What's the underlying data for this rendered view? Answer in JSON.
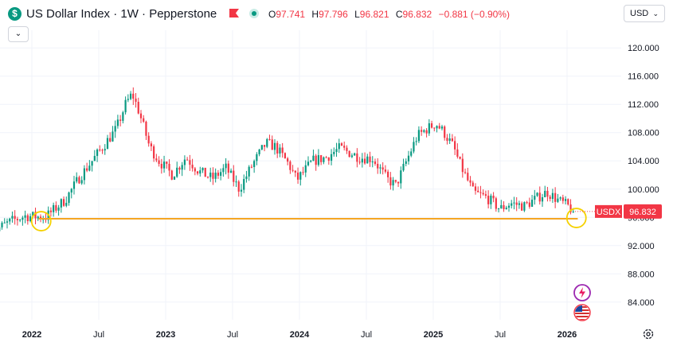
{
  "header": {
    "title": "US Dollar Index · 1W · Pepperstone",
    "ohlc": [
      {
        "k": "O",
        "v": "97.741"
      },
      {
        "k": "H",
        "v": "97.796"
      },
      {
        "k": "L",
        "v": "96.821"
      },
      {
        "k": "C",
        "v": "96.832"
      }
    ],
    "change": "−0.881 (−0.90%)",
    "currency": "USD",
    "logo_icon": "dollar-sign-icon",
    "collapse_icon": "chevron-down-icon"
  },
  "colors": {
    "up": "#089981",
    "down": "#f23645",
    "support_line": "#f5a623",
    "grid": "#f0f3fa",
    "price_label_bg": "#f23645"
  },
  "chart_data": {
    "type": "candlestick",
    "symbol_label": "USDX",
    "last_price": "96.832",
    "y_ticks": [
      "120.000",
      "116.000",
      "112.000",
      "108.000",
      "104.000",
      "100.000",
      "96.000",
      "92.000",
      "88.000",
      "84.000"
    ],
    "x_ticks": [
      {
        "label": "2022",
        "date": "2022-01",
        "bold": true
      },
      {
        "label": "Jul",
        "date": "2022-07",
        "bold": false
      },
      {
        "label": "2023",
        "date": "2023-01",
        "bold": true
      },
      {
        "label": "Jul",
        "date": "2023-07",
        "bold": false
      },
      {
        "label": "2024",
        "date": "2024-01",
        "bold": true
      },
      {
        "label": "Jul",
        "date": "2024-07",
        "bold": false
      },
      {
        "label": "2025",
        "date": "2025-01",
        "bold": true
      },
      {
        "label": "Jul",
        "date": "2025-07",
        "bold": false
      },
      {
        "label": "2026",
        "date": "2026-01",
        "bold": true
      }
    ],
    "ylim": [
      81.5,
      122.5
    ],
    "grid": true,
    "support_level": 95.8,
    "price_path": [
      [
        2021.7,
        93.9
      ],
      [
        2021.85,
        95.5
      ],
      [
        2021.95,
        96.2
      ],
      [
        2022.1,
        96.0
      ],
      [
        2022.25,
        98.5
      ],
      [
        2022.35,
        101.5
      ],
      [
        2022.45,
        104.0
      ],
      [
        2022.55,
        106.5
      ],
      [
        2022.63,
        108.5
      ],
      [
        2022.7,
        112.0
      ],
      [
        2022.75,
        113.5
      ],
      [
        2022.8,
        111.0
      ],
      [
        2022.88,
        106.0
      ],
      [
        2022.95,
        104.0
      ],
      [
        2023.05,
        102.0
      ],
      [
        2023.15,
        104.5
      ],
      [
        2023.25,
        102.5
      ],
      [
        2023.35,
        101.5
      ],
      [
        2023.45,
        103.0
      ],
      [
        2023.55,
        100.0
      ],
      [
        2023.65,
        103.5
      ],
      [
        2023.75,
        106.5
      ],
      [
        2023.82,
        106.0
      ],
      [
        2023.92,
        103.5
      ],
      [
        2023.98,
        101.3
      ],
      [
        2024.1,
        104.0
      ],
      [
        2024.2,
        104.5
      ],
      [
        2024.3,
        105.8
      ],
      [
        2024.45,
        104.5
      ],
      [
        2024.55,
        104.3
      ],
      [
        2024.65,
        101.5
      ],
      [
        2024.72,
        100.5
      ],
      [
        2024.8,
        104.0
      ],
      [
        2024.88,
        107.5
      ],
      [
        2024.95,
        108.5
      ],
      [
        2025.02,
        109.3
      ],
      [
        2025.08,
        108.0
      ],
      [
        2025.15,
        106.0
      ],
      [
        2025.2,
        103.5
      ],
      [
        2025.3,
        99.5
      ],
      [
        2025.4,
        98.8
      ],
      [
        2025.5,
        97.2
      ],
      [
        2025.58,
        98.0
      ],
      [
        2025.68,
        97.6
      ],
      [
        2025.78,
        98.8
      ],
      [
        2025.85,
        99.6
      ],
      [
        2025.95,
        98.2
      ],
      [
        2026.0,
        97.7
      ],
      [
        2026.05,
        96.83
      ]
    ]
  },
  "icons": {
    "settings": "gear-icon",
    "bolt": "lightning-icon",
    "flag": "us-flag-icon"
  }
}
